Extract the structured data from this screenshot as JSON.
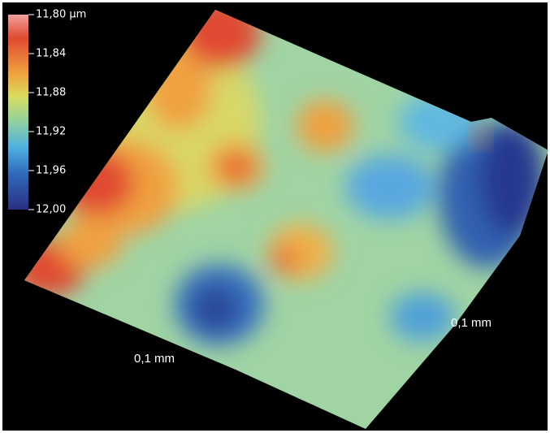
{
  "colorbar": {
    "ticks": [
      "11,80 µm",
      "11,84",
      "11,88",
      "11,92",
      "11,96",
      "12,00"
    ]
  },
  "axis_labels": [
    "0,1 mm",
    "0,1 mm"
  ]
}
